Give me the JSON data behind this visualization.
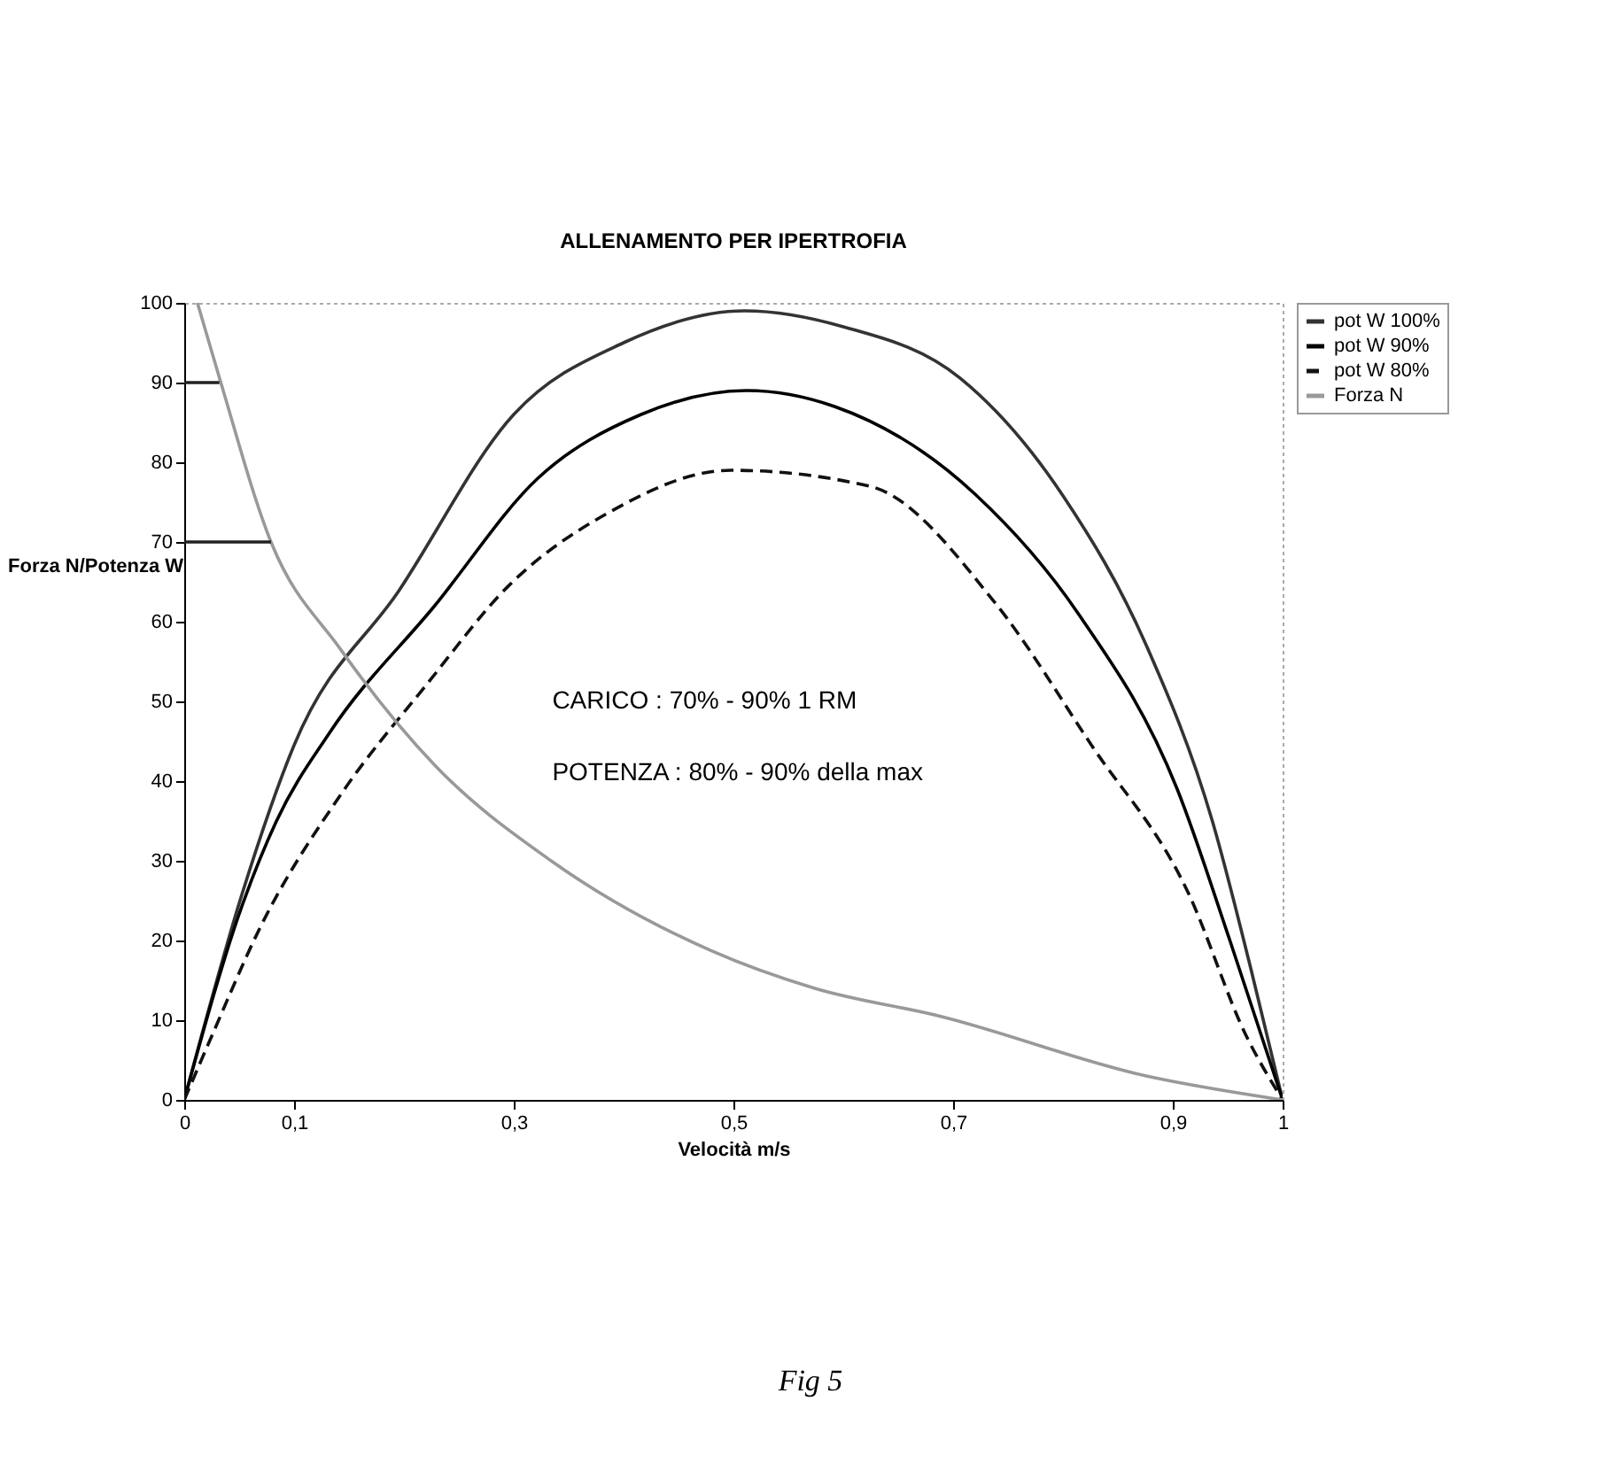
{
  "chart_data": {
    "type": "line",
    "title": "ALLENAMENTO PER IPERTROFIA",
    "xlabel": "Velocità m/s",
    "ylabel": "Forza N/Potenza W",
    "xlim": [
      0,
      1
    ],
    "xticks": [
      0,
      {
        "value": 0.1,
        "label": "0,1"
      },
      {
        "value": 0.3,
        "label": "0,3"
      },
      {
        "value": 0.5,
        "label": "0,5"
      },
      {
        "value": 0.7,
        "label": "0,7"
      },
      {
        "value": 0.9,
        "label": "0,9"
      },
      1
    ],
    "ylim": [
      0,
      100
    ],
    "yticks": [
      0,
      10,
      20,
      30,
      40,
      50,
      60,
      70,
      80,
      90,
      100
    ],
    "grid": false,
    "legend": "right",
    "annotations": [
      "CARICO : 70% - 90% 1 RM",
      "POTENZA : 80% - 90% della max",
      "Fig 5"
    ],
    "series": [
      {
        "name": "pot W 100%",
        "color": "#333333",
        "line_style": "solid",
        "x": [
          0,
          0.053,
          0.1,
          0.196,
          0.3,
          0.4,
          0.51,
          0.6,
          0.706,
          0.8,
          0.876,
          0.936,
          0.971,
          1
        ],
        "values": [
          0,
          26,
          44.5,
          64,
          86,
          95,
          99,
          97,
          90.6,
          75.8,
          57,
          35,
          16.5,
          0
        ]
      },
      {
        "name": "pot W 90%",
        "color": "#000000",
        "line_style": "solid",
        "x": [
          0,
          0.053,
          0.084,
          0.132,
          0.228,
          0.322,
          0.416,
          0.512,
          0.592,
          0.72,
          0.814,
          0.904,
          0.952,
          1
        ],
        "values": [
          0,
          24.5,
          35,
          46,
          62,
          78,
          86,
          89,
          87,
          76,
          61,
          39,
          20,
          0
        ]
      },
      {
        "name": "pot W 80%",
        "color": "#111111",
        "line_style": "dashed",
        "x": [
          0,
          0.025,
          0.069,
          0.144,
          0.22,
          0.296,
          0.384,
          0.498,
          0.624,
          0.738,
          0.826,
          0.914,
          0.967,
          1
        ],
        "values": [
          0,
          8,
          21.6,
          38.6,
          52,
          64.6,
          73.5,
          79,
          77,
          62.4,
          44.5,
          26,
          8,
          0
        ]
      },
      {
        "name": "Forza N",
        "color": "#999999",
        "line_style": "solid",
        "x": [
          0.012,
          0.032,
          0.079,
          0.142,
          0.228,
          0.334,
          0.48,
          0.574,
          0.688,
          0.876,
          1
        ],
        "values": [
          100,
          90.6,
          70,
          56.6,
          42,
          30,
          18.7,
          14,
          10.5,
          3,
          0
        ]
      },
      {
        "color": "#222222",
        "line_style": "solid",
        "x": [
          0,
          0.032
        ],
        "values": [
          90,
          90
        ]
      },
      {
        "color": "#222222",
        "line_style": "solid",
        "x": [
          0,
          0.079
        ],
        "values": [
          70,
          70
        ]
      }
    ]
  }
}
